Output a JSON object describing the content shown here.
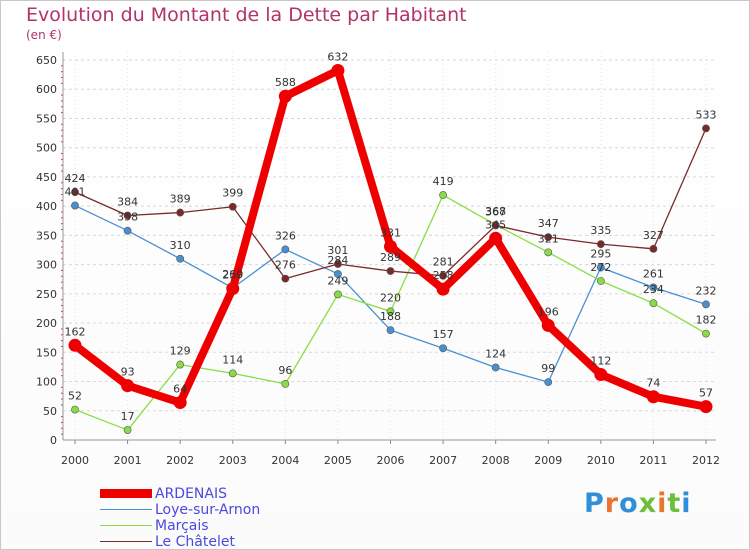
{
  "title": "Evolution du Montant de la Dette par Habitant",
  "unit": "(en €)",
  "logo": {
    "text": "Proxiti",
    "colors": [
      "#2f8fd8",
      "#e8762c",
      "#2f8fd8",
      "#6cbf3a",
      "#e8762c",
      "#6cbf3a",
      "#2f8fd8"
    ]
  },
  "chart_data": {
    "type": "line",
    "title": "Evolution du Montant de la Dette par Habitant",
    "ylabel": "(en €)",
    "xlabel": "",
    "ylim": [
      0,
      650
    ],
    "yticks": [
      0,
      50,
      100,
      150,
      200,
      250,
      300,
      350,
      400,
      450,
      500,
      550,
      600,
      650
    ],
    "grid": "horizontal-dashed",
    "x": [
      "2000",
      "2001",
      "2002",
      "2003",
      "2004",
      "2005",
      "2006",
      "2007",
      "2008",
      "2009",
      "2010",
      "2011",
      "2012"
    ],
    "series": [
      {
        "name": "ARDENAIS",
        "color": "#ee0000",
        "values": [
          162,
          93,
          64,
          259,
          588,
          632,
          331,
          258,
          345,
          196,
          112,
          74,
          57
        ]
      },
      {
        "name": "Loye-sur-Arnon",
        "color": "#4a90d0",
        "values": [
          401,
          358,
          310,
          260,
          326,
          284,
          188,
          157,
          124,
          99,
          295,
          261,
          232
        ]
      },
      {
        "name": "Marçais",
        "color": "#88dd44",
        "values": [
          52,
          17,
          129,
          114,
          96,
          249,
          220,
          419,
          368,
          321,
          272,
          234,
          182
        ]
      },
      {
        "name": "Le Châtelet",
        "color": "#7a2a2a",
        "values": [
          424,
          384,
          389,
          399,
          276,
          301,
          289,
          281,
          367,
          347,
          335,
          327,
          533
        ]
      }
    ]
  }
}
